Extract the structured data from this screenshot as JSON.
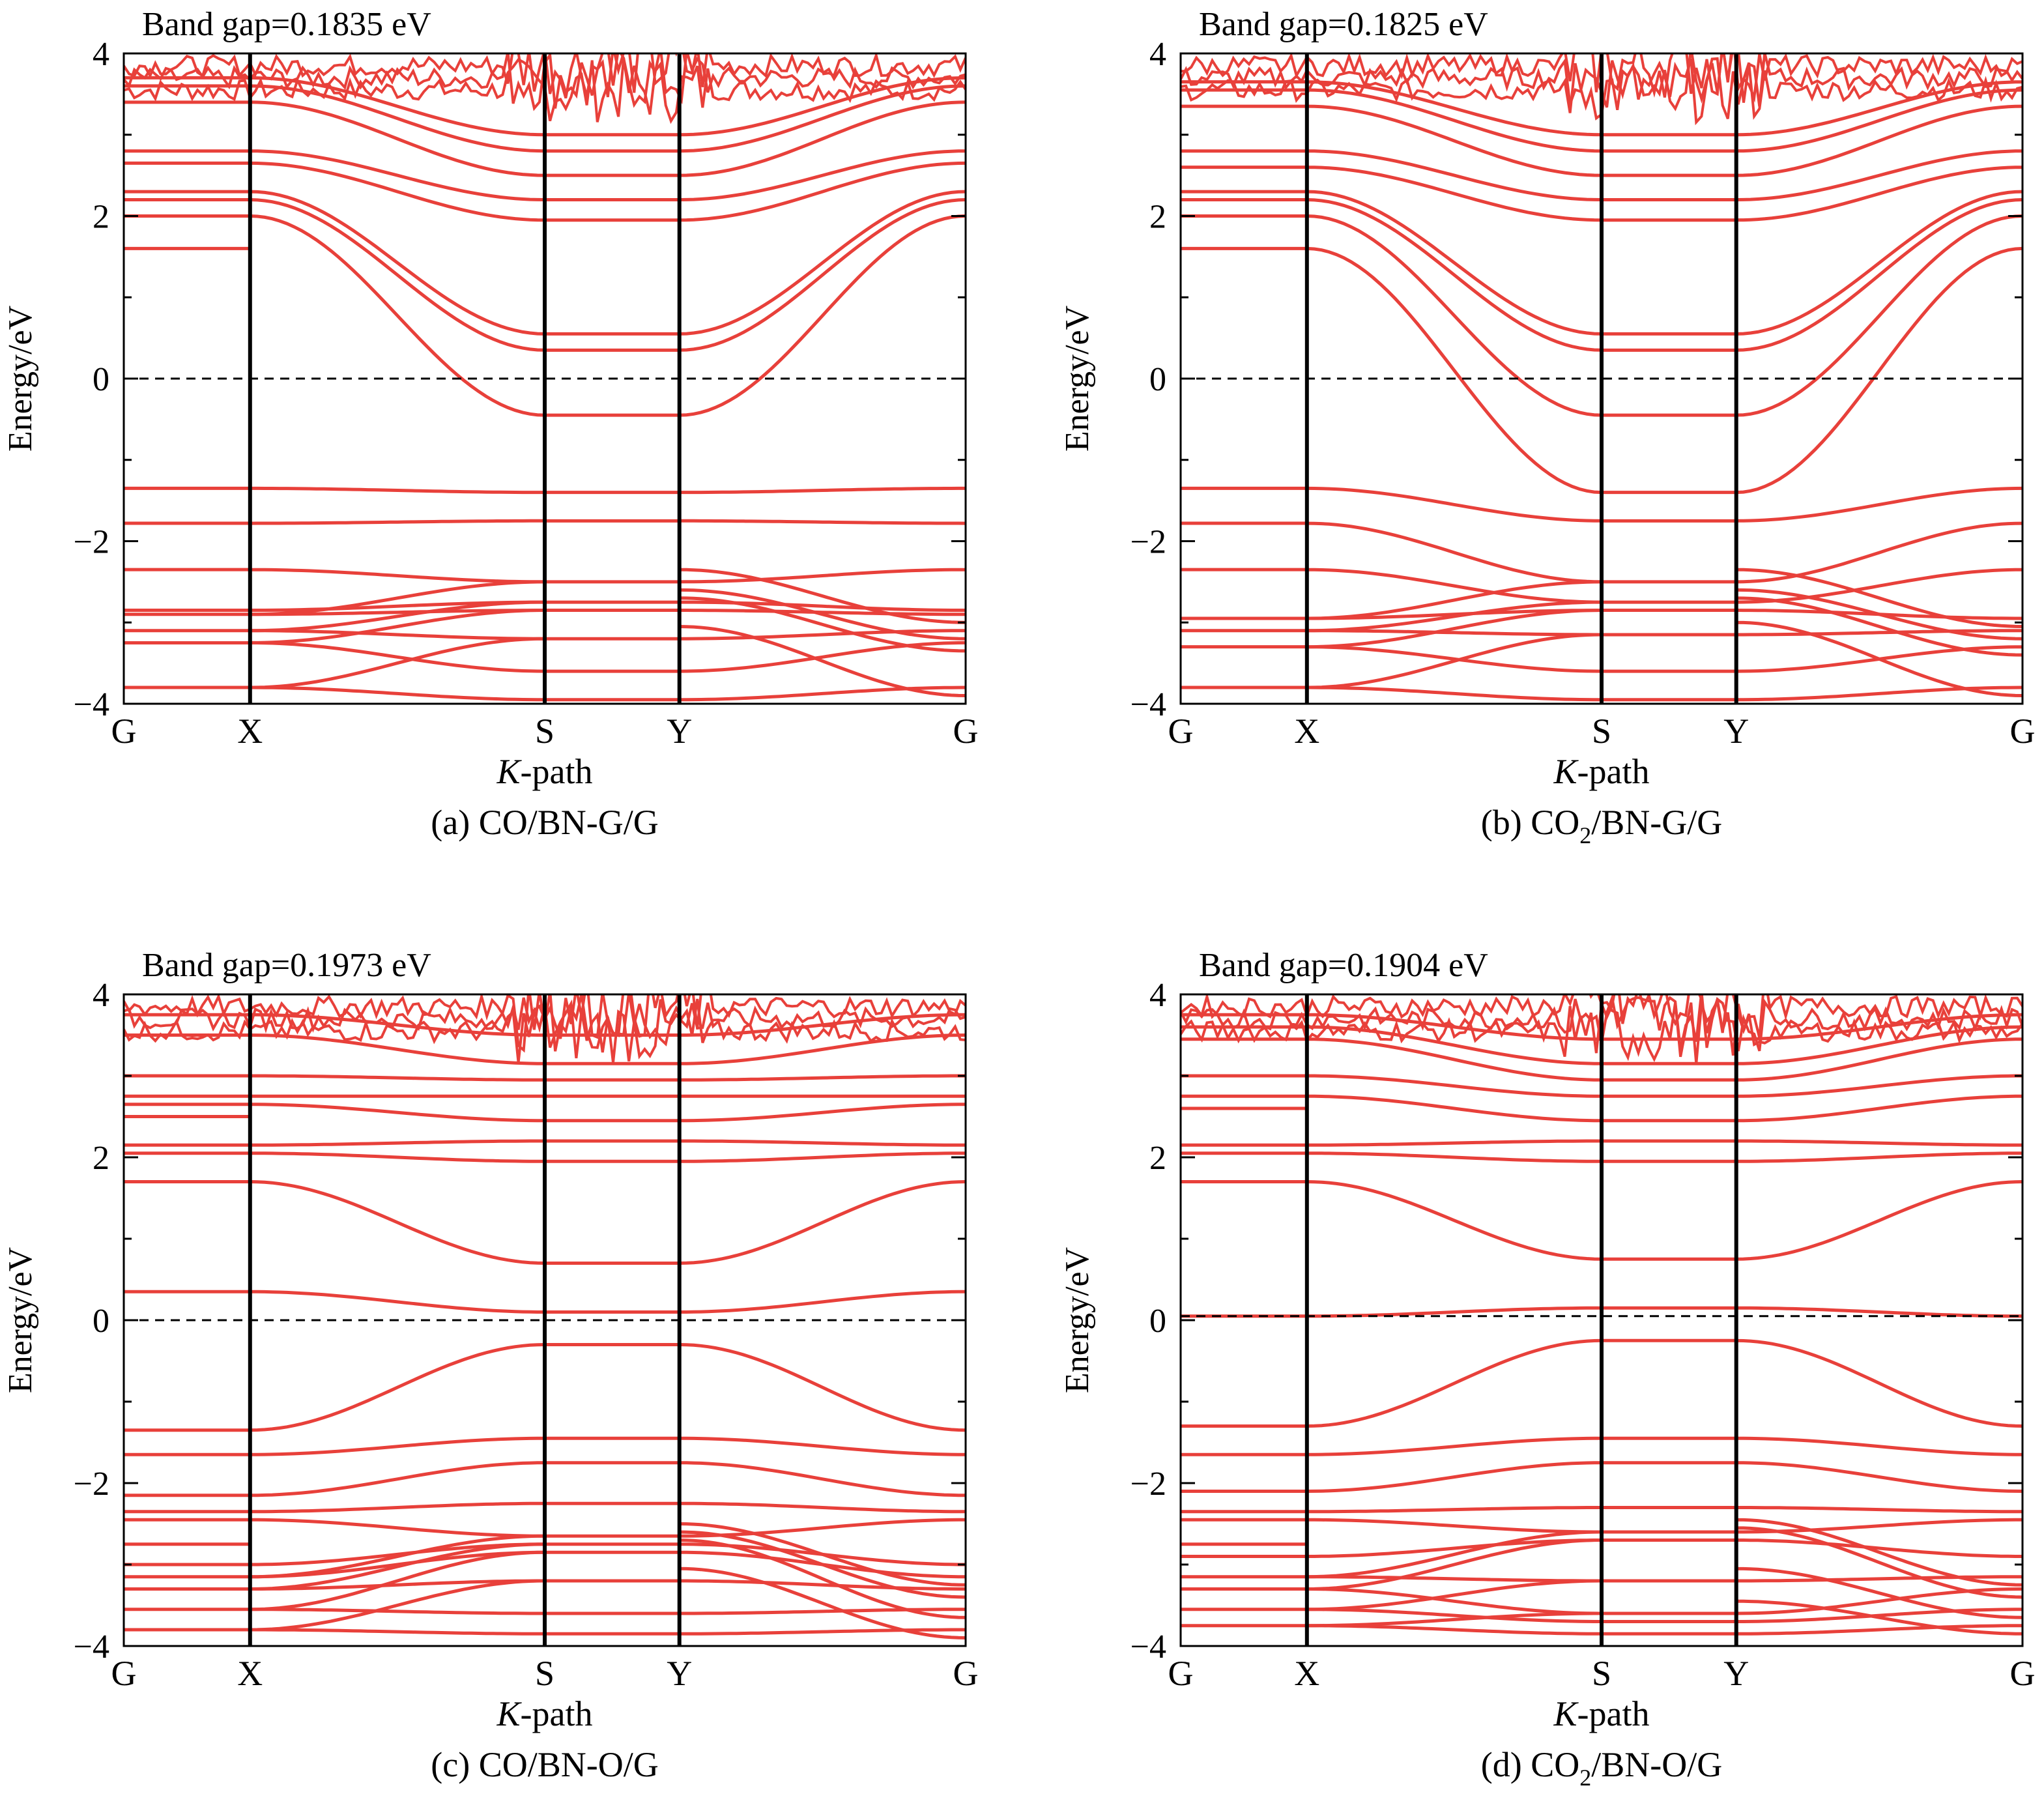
{
  "figure": {
    "colors": {
      "band": "#e8403a",
      "axis": "#000000",
      "fermi": "#000000"
    },
    "x_label_prefix": "K",
    "x_label_suffix": "-path",
    "y_label": "Energy/eV"
  },
  "chart_data": [
    {
      "type": "line",
      "title": "Band gap=0.1835 eV",
      "caption_parts": [
        "(a) CO/BN-G/G"
      ],
      "xlabel": "K-path",
      "ylabel": "Energy/eV",
      "ylim": [
        -4,
        4
      ],
      "y_ticks": [
        -4,
        -2,
        0,
        2,
        4
      ],
      "k_points": [
        "G",
        "X",
        "S",
        "Y",
        "G"
      ],
      "k_positions": [
        0,
        0.15,
        0.5,
        0.66,
        1
      ],
      "fermi_level": 0,
      "bands": {
        "GX_levels": [
          -3.8,
          -3.25,
          -3.1,
          -2.9,
          -2.85,
          -2.35,
          -1.78,
          -1.35,
          1.6,
          2.0,
          2.2,
          2.3,
          2.65,
          2.8,
          3.4,
          3.6,
          3.7
        ],
        "S_levels": [
          -3.95,
          -3.6,
          -3.2,
          -2.85,
          -2.75,
          -2.5,
          -1.75,
          -1.4,
          -0.45,
          0.35,
          0.55,
          1.95,
          2.2,
          2.5,
          2.8,
          3.0
        ],
        "notes": "dispersive bands connect X to S and Y to G"
      }
    },
    {
      "type": "line",
      "title": "Band gap=0.1825 eV",
      "caption_parts": [
        "(b) CO",
        "2",
        "/BN-G/G"
      ],
      "xlabel": "K-path",
      "ylabel": "Energy/eV",
      "ylim": [
        -4,
        4
      ],
      "y_ticks": [
        -4,
        -2,
        0,
        2,
        4
      ],
      "k_points": [
        "G",
        "X",
        "S",
        "Y",
        "G"
      ],
      "k_positions": [
        0,
        0.15,
        0.5,
        0.66,
        1
      ],
      "fermi_level": 0,
      "bands": {
        "GX_levels": [
          -3.8,
          -3.3,
          -3.1,
          -2.95,
          -2.35,
          -1.78,
          -1.35,
          1.6,
          2.0,
          2.2,
          2.3,
          2.6,
          2.8,
          3.35,
          3.55,
          3.65
        ],
        "S_levels": [
          -3.95,
          -3.6,
          -3.15,
          -2.85,
          -2.75,
          -2.5,
          -1.75,
          -1.4,
          -0.45,
          0.35,
          0.55,
          1.95,
          2.2,
          2.5,
          2.8,
          3.0
        ],
        "notes": "dispersive bands connect X to S and Y to G"
      }
    },
    {
      "type": "line",
      "title": "Band gap=0.1973 eV",
      "caption_parts": [
        "(c) CO/BN-O/G"
      ],
      "xlabel": "K-path",
      "ylabel": "Energy/eV",
      "ylim": [
        -4,
        4
      ],
      "y_ticks": [
        -4,
        -2,
        0,
        2,
        4
      ],
      "k_points": [
        "G",
        "X",
        "S",
        "Y",
        "G"
      ],
      "k_positions": [
        0,
        0.15,
        0.5,
        0.66,
        1
      ],
      "fermi_level": 0,
      "bands": {
        "GX_levels": [
          -3.8,
          -3.55,
          -3.3,
          -3.15,
          -3.0,
          -2.75,
          -2.45,
          -2.35,
          -2.15,
          -1.65,
          -1.35,
          0.35,
          1.7,
          2.05,
          2.15,
          2.5,
          2.65,
          2.75,
          3.0,
          3.5,
          3.75
        ],
        "S_levels": [
          -3.85,
          -3.6,
          -3.2,
          -2.85,
          -2.75,
          -2.65,
          -2.25,
          -1.75,
          -1.45,
          -0.3,
          0.1,
          0.7,
          1.95,
          2.2,
          2.45,
          2.75,
          2.95,
          3.15,
          3.5
        ],
        "notes": "dispersive bands connect X to S and Y to G"
      }
    },
    {
      "type": "line",
      "title": "Band gap=0.1904 eV",
      "caption_parts": [
        "(d) CO",
        "2",
        "/BN-O/G"
      ],
      "xlabel": "K-path",
      "ylabel": "Energy/eV",
      "ylim": [
        -4,
        4
      ],
      "y_ticks": [
        -4,
        -2,
        0,
        2,
        4
      ],
      "k_points": [
        "G",
        "X",
        "S",
        "Y",
        "G"
      ],
      "k_positions": [
        0,
        0.15,
        0.5,
        0.66,
        1
      ],
      "fermi_level": 0.05,
      "bands": {
        "GX_levels": [
          -3.75,
          -3.55,
          -3.3,
          -3.15,
          -2.9,
          -2.75,
          -2.45,
          -2.35,
          -2.1,
          -1.65,
          -1.3,
          0.05,
          1.7,
          2.05,
          2.15,
          2.6,
          2.75,
          3.0,
          3.45,
          3.6,
          3.75
        ],
        "S_levels": [
          -3.85,
          -3.7,
          -3.6,
          -3.2,
          -2.7,
          -2.6,
          -2.3,
          -1.75,
          -1.45,
          -0.25,
          0.15,
          0.75,
          1.95,
          2.2,
          2.45,
          2.75,
          2.95,
          3.15,
          3.45
        ],
        "notes": "dispersive bands connect X to S and Y to G"
      }
    }
  ]
}
